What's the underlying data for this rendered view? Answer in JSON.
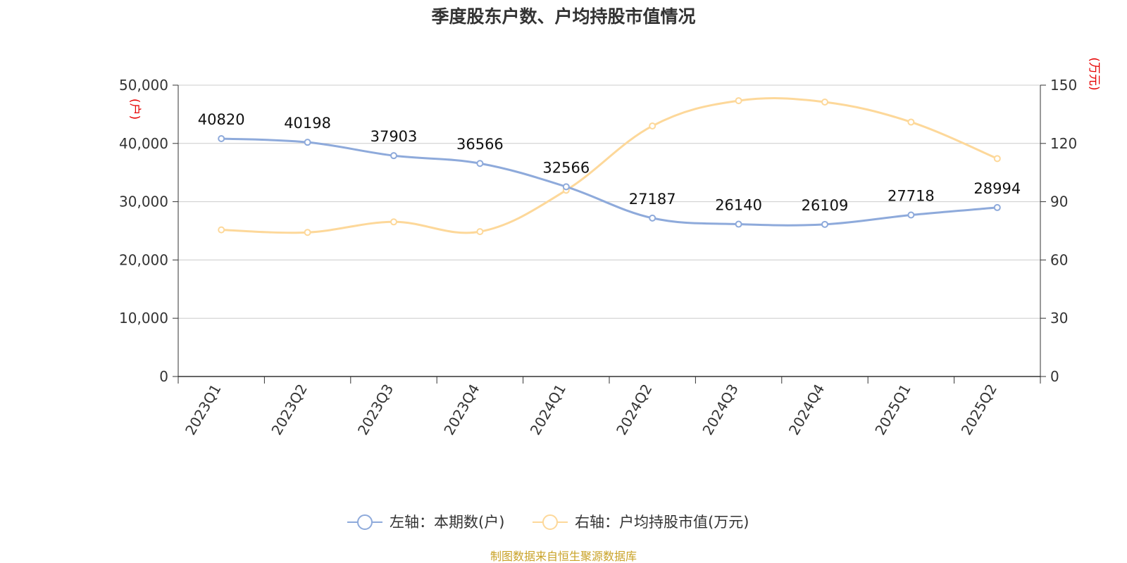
{
  "chart_data": {
    "type": "line",
    "title": "季度股东户数、户均持股市值情况",
    "categories": [
      "2023Q1",
      "2023Q2",
      "2023Q3",
      "2023Q4",
      "2024Q1",
      "2024Q2",
      "2024Q3",
      "2024Q4",
      "2025Q1",
      "2025Q2"
    ],
    "left_axis": {
      "unit_label": "(户)",
      "range": [
        0,
        50000
      ],
      "ticks": [
        "0",
        "10,000",
        "20,000",
        "30,000",
        "40,000",
        "50,000"
      ]
    },
    "right_axis": {
      "unit_label": "(万元)",
      "range": [
        0,
        150
      ],
      "ticks": [
        "0",
        "30",
        "60",
        "90",
        "120",
        "150"
      ]
    },
    "series": [
      {
        "name": "左轴：本期数(户)",
        "axis": "left",
        "color": "#8eaadb",
        "values": [
          40820,
          40198,
          37903,
          36566,
          32566,
          27187,
          26140,
          26109,
          27718,
          28994
        ],
        "labels": [
          "40820",
          "40198",
          "37903",
          "36566",
          "32566",
          "27187",
          "26140",
          "26109",
          "27718",
          "28994"
        ]
      },
      {
        "name": "右轴：户均持股市值(万元)",
        "axis": "right",
        "color": "#fdd89a",
        "values": [
          75.5,
          74.2,
          79.6,
          74.6,
          95.9,
          129.0,
          142.0,
          141.3,
          131.0,
          112.2
        ]
      }
    ],
    "grid": true,
    "legend_position": "bottom-center"
  },
  "source_text": "制图数据来自恒生聚源数据库"
}
